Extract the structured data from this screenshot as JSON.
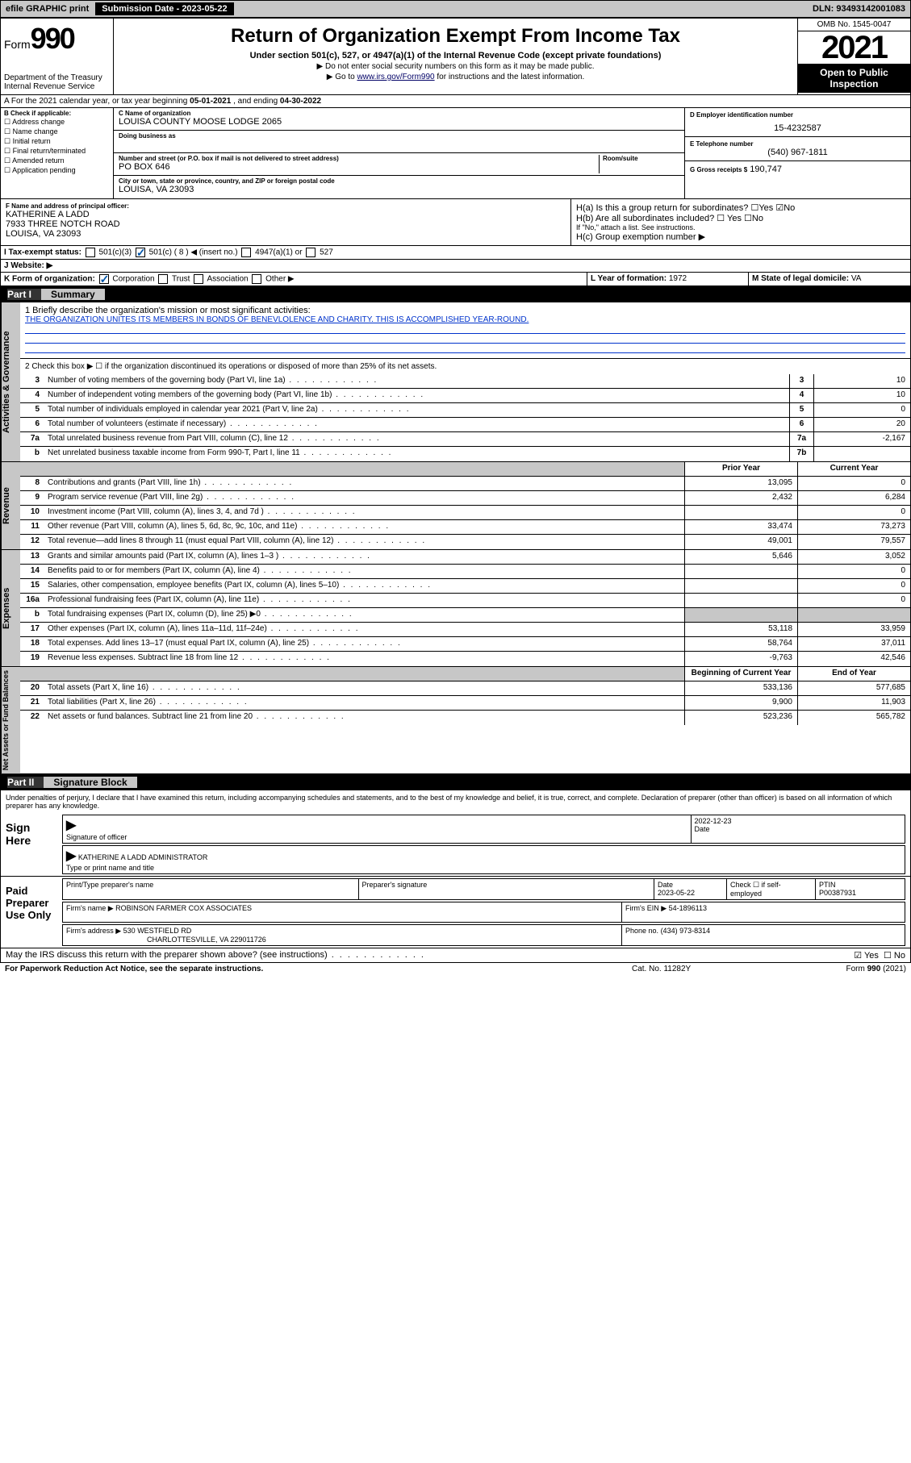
{
  "topbar": {
    "efile": "efile GRAPHIC print",
    "submission_btn": "Submission Date - 2023-05-22",
    "dln": "DLN: 93493142001083"
  },
  "header": {
    "form_label": "Form",
    "form_num": "990",
    "dept": "Department of the Treasury Internal Revenue Service",
    "title": "Return of Organization Exempt From Income Tax",
    "subtitle": "Under section 501(c), 527, or 4947(a)(1) of the Internal Revenue Code (except private foundations)",
    "note1": "▶ Do not enter social security numbers on this form as it may be made public.",
    "note2_pre": "▶ Go to ",
    "note2_link": "www.irs.gov/Form990",
    "note2_post": " for instructions and the latest information.",
    "omb": "OMB No. 1545-0047",
    "year": "2021",
    "inspect": "Open to Public Inspection"
  },
  "period": {
    "label_a": "A For the 2021 calendar year, or tax year beginning ",
    "begin": "05-01-2021",
    "mid": " , and ending ",
    "end": "04-30-2022"
  },
  "boxB": {
    "label": "B Check if applicable:",
    "opts": [
      "☐ Address change",
      "☐ Name change",
      "☐ Initial return",
      "☐ Final return/terminated",
      "☐ Amended return",
      "☐ Application pending"
    ]
  },
  "boxC": {
    "name_lbl": "C Name of organization",
    "name": "LOUISA COUNTY MOOSE LODGE 2065",
    "dba_lbl": "Doing business as",
    "dba": "",
    "street_lbl": "Number and street (or P.O. box if mail is not delivered to street address)",
    "street": "PO BOX 646",
    "room_lbl": "Room/suite",
    "city_lbl": "City or town, state or province, country, and ZIP or foreign postal code",
    "city": "LOUISA, VA  23093"
  },
  "boxD": {
    "lbl": "D Employer identification number",
    "val": "15-4232587"
  },
  "boxE": {
    "lbl": "E Telephone number",
    "val": "(540) 967-1811"
  },
  "boxG": {
    "lbl": "G Gross receipts $",
    "val": "190,747"
  },
  "boxF": {
    "lbl": "F Name and address of principal officer:",
    "name": "KATHERINE A LADD",
    "addr1": "7933 THREE NOTCH ROAD",
    "addr2": "LOUISA, VA  23093"
  },
  "boxH": {
    "a": "H(a)  Is this a group return for subordinates?",
    "a_yes": "☐Yes",
    "a_no": "☑No",
    "b": "H(b)  Are all subordinates included?",
    "b_yes": "☐ Yes",
    "b_no": "☐No",
    "note": "If \"No,\" attach a list. See instructions.",
    "c": "H(c)  Group exemption number ▶"
  },
  "boxI": {
    "lbl": "I   Tax-exempt status:",
    "c3": "501(c)(3)",
    "c8": "501(c) ( 8 ) ◀ (insert no.)",
    "a1": "4947(a)(1) or",
    "s527": "527"
  },
  "boxJ": {
    "lbl": "J   Website: ▶",
    "val": ""
  },
  "boxK": {
    "lbl": "K Form of organization:",
    "corp": "Corporation",
    "trust": "Trust",
    "assoc": "Association",
    "other": "Other ▶"
  },
  "boxL": {
    "lbl": "L Year of formation:",
    "val": "1972"
  },
  "boxM": {
    "lbl": "M State of legal domicile:",
    "val": "VA"
  },
  "part1": {
    "num": "Part I",
    "title": "Summary"
  },
  "summary": {
    "l1_lbl": "1   Briefly describe the organization's mission or most significant activities:",
    "l1_val": "THE ORGANIZATION UNITES ITS MEMBERS IN BONDS OF BENEVLOLENCE AND CHARITY. THIS IS ACCOMPLISHED YEAR-ROUND.",
    "l2": "2   Check this box ▶ ☐  if the organization discontinued its operations or disposed of more than 25% of its net assets.",
    "rows_ag": [
      {
        "n": "3",
        "t": "Number of voting members of the governing body (Part VI, line 1a)",
        "r": "3",
        "v": "10"
      },
      {
        "n": "4",
        "t": "Number of independent voting members of the governing body (Part VI, line 1b)",
        "r": "4",
        "v": "10"
      },
      {
        "n": "5",
        "t": "Total number of individuals employed in calendar year 2021 (Part V, line 2a)",
        "r": "5",
        "v": "0"
      },
      {
        "n": "6",
        "t": "Total number of volunteers (estimate if necessary)",
        "r": "6",
        "v": "20"
      },
      {
        "n": "7a",
        "t": "Total unrelated business revenue from Part VIII, column (C), line 12",
        "r": "7a",
        "v": "-2,167"
      },
      {
        "n": "b",
        "t": "Net unrelated business taxable income from Form 990-T, Part I, line 11",
        "r": "7b",
        "v": ""
      }
    ],
    "col_prior": "Prior Year",
    "col_curr": "Current Year",
    "rev": [
      {
        "n": "8",
        "t": "Contributions and grants (Part VIII, line 1h)",
        "p": "13,095",
        "c": "0"
      },
      {
        "n": "9",
        "t": "Program service revenue (Part VIII, line 2g)",
        "p": "2,432",
        "c": "6,284"
      },
      {
        "n": "10",
        "t": "Investment income (Part VIII, column (A), lines 3, 4, and 7d )",
        "p": "",
        "c": "0"
      },
      {
        "n": "11",
        "t": "Other revenue (Part VIII, column (A), lines 5, 6d, 8c, 9c, 10c, and 11e)",
        "p": "33,474",
        "c": "73,273"
      },
      {
        "n": "12",
        "t": "Total revenue—add lines 8 through 11 (must equal Part VIII, column (A), line 12)",
        "p": "49,001",
        "c": "79,557"
      }
    ],
    "exp": [
      {
        "n": "13",
        "t": "Grants and similar amounts paid (Part IX, column (A), lines 1–3 )",
        "p": "5,646",
        "c": "3,052"
      },
      {
        "n": "14",
        "t": "Benefits paid to or for members (Part IX, column (A), line 4)",
        "p": "",
        "c": "0"
      },
      {
        "n": "15",
        "t": "Salaries, other compensation, employee benefits (Part IX, column (A), lines 5–10)",
        "p": "",
        "c": "0"
      },
      {
        "n": "16a",
        "t": "Professional fundraising fees (Part IX, column (A), line 11e)",
        "p": "",
        "c": "0"
      },
      {
        "n": "b",
        "t": "Total fundraising expenses (Part IX, column (D), line 25) ▶0",
        "p": "GREY",
        "c": "GREY"
      },
      {
        "n": "17",
        "t": "Other expenses (Part IX, column (A), lines 11a–11d, 11f–24e)",
        "p": "53,118",
        "c": "33,959"
      },
      {
        "n": "18",
        "t": "Total expenses. Add lines 13–17 (must equal Part IX, column (A), line 25)",
        "p": "58,764",
        "c": "37,011"
      },
      {
        "n": "19",
        "t": "Revenue less expenses. Subtract line 18 from line 12",
        "p": "-9,763",
        "c": "42,546"
      }
    ],
    "col_begin": "Beginning of Current Year",
    "col_end": "End of Year",
    "net": [
      {
        "n": "20",
        "t": "Total assets (Part X, line 16)",
        "p": "533,136",
        "c": "577,685"
      },
      {
        "n": "21",
        "t": "Total liabilities (Part X, line 26)",
        "p": "9,900",
        "c": "11,903"
      },
      {
        "n": "22",
        "t": "Net assets or fund balances. Subtract line 21 from line 20",
        "p": "523,236",
        "c": "565,782"
      }
    ]
  },
  "side": {
    "ag": "Activities & Governance",
    "rev": "Revenue",
    "exp": "Expenses",
    "net": "Net Assets or Fund Balances"
  },
  "part2": {
    "num": "Part II",
    "title": "Signature Block"
  },
  "sig": {
    "decl": "Under penalties of perjury, I declare that I have examined this return, including accompanying schedules and statements, and to the best of my knowledge and belief, it is true, correct, and complete. Declaration of preparer (other than officer) is based on all information of which preparer has any knowledge.",
    "sign_here": "Sign Here",
    "sig_officer": "Signature of officer",
    "sig_date": "2022-12-23",
    "date_lbl": "Date",
    "officer_name": "KATHERINE A LADD  ADMINISTRATOR",
    "type_name": "Type or print name and title",
    "paid": "Paid Preparer Use Only",
    "prep_name_lbl": "Print/Type preparer's name",
    "prep_sig_lbl": "Preparer's signature",
    "prep_date_lbl": "Date",
    "prep_date": "2023-05-22",
    "self_emp": "Check ☐ if self-employed",
    "ptin_lbl": "PTIN",
    "ptin": "P00387931",
    "firm_name_lbl": "Firm's name    ▶",
    "firm_name": "ROBINSON FARMER COX ASSOCIATES",
    "firm_ein_lbl": "Firm's EIN ▶",
    "firm_ein": "54-1896113",
    "firm_addr_lbl": "Firm's address ▶",
    "firm_addr1": "530 WESTFIELD RD",
    "firm_addr2": "CHARLOTTESVILLE, VA  229011726",
    "phone_lbl": "Phone no.",
    "phone": "(434) 973-8314",
    "discuss": "May the IRS discuss this return with the preparer shown above? (see instructions)",
    "d_yes": "☑ Yes",
    "d_no": "☐ No"
  },
  "footer": {
    "l": "For Paperwork Reduction Act Notice, see the separate instructions.",
    "m": "Cat. No. 11282Y",
    "r": "Form 990 (2021)"
  }
}
